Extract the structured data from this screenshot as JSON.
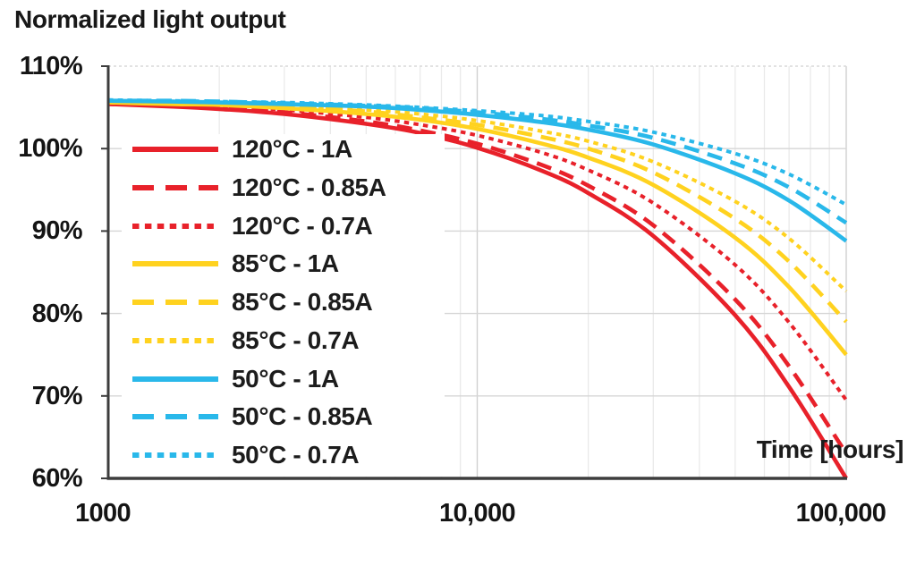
{
  "chart_data": {
    "type": "line",
    "title": "Normalized light output",
    "xlabel": "Time [hours]",
    "ylabel": "",
    "x_scale": "log",
    "xlim": [
      1000,
      100000
    ],
    "ylim": [
      60,
      110
    ],
    "grid": "on",
    "legend_position": "inside-upper-left",
    "x_ticks": [
      {
        "value": 1000,
        "label": "1000"
      },
      {
        "value": 10000,
        "label": "10,000"
      },
      {
        "value": 100000,
        "label": "100,000"
      }
    ],
    "y_ticks": [
      {
        "value": 110,
        "label": "110%"
      },
      {
        "value": 100,
        "label": "100%"
      },
      {
        "value": 90,
        "label": "90%"
      },
      {
        "value": 80,
        "label": "80%"
      },
      {
        "value": 70,
        "label": "70%"
      },
      {
        "value": 60,
        "label": "60%"
      }
    ],
    "x_minor_gridlines": [
      2000,
      3000,
      4000,
      5000,
      6000,
      7000,
      8000,
      9000,
      20000,
      30000,
      40000,
      50000,
      60000,
      70000,
      80000,
      90000
    ],
    "x_major_gridlines": [
      10000,
      100000
    ],
    "y_gridlines": [
      70,
      80,
      90,
      100
    ],
    "colors": {
      "line_120C": "#e8212a",
      "line_85C": "#ffd21f",
      "line_50C": "#29b8ea",
      "axis": "#3d3d3d",
      "grid": "#d6d6d6"
    },
    "x": [
      1000,
      1500,
      2000,
      3000,
      5000,
      7000,
      10000,
      15000,
      20000,
      30000,
      50000,
      70000,
      100000
    ],
    "series": [
      {
        "name": "120°C - 1A",
        "color": "#e8212a",
        "dash": "solid",
        "values": [
          105.4,
          105.1,
          104.8,
          104.2,
          103.0,
          101.9,
          100.1,
          97.3,
          94.6,
          89.4,
          79.8,
          71.1,
          60.0
        ]
      },
      {
        "name": "120°C - 0.85A",
        "color": "#e8212a",
        "dash": "dashed",
        "values": [
          105.5,
          105.2,
          104.9,
          104.4,
          103.3,
          102.2,
          100.6,
          98.0,
          95.5,
          90.7,
          81.7,
          73.6,
          63.0
        ]
      },
      {
        "name": "120°C - 0.7A",
        "color": "#e8212a",
        "dash": "dotted",
        "values": [
          105.6,
          105.3,
          105.1,
          104.7,
          103.8,
          102.9,
          101.6,
          99.5,
          97.4,
          93.4,
          85.9,
          78.9,
          69.5
        ]
      },
      {
        "name": "85°C - 1A",
        "color": "#ffd21f",
        "dash": "solid",
        "values": [
          105.6,
          105.4,
          105.3,
          104.9,
          104.2,
          103.5,
          102.4,
          100.6,
          98.9,
          95.6,
          89.2,
          83.2,
          75.0
        ]
      },
      {
        "name": "85°C - 0.85A",
        "color": "#ffd21f",
        "dash": "dashed",
        "values": [
          105.7,
          105.5,
          105.4,
          105.1,
          104.5,
          103.8,
          102.9,
          101.4,
          100.0,
          97.1,
          91.5,
          86.3,
          79.0
        ]
      },
      {
        "name": "85°C - 0.7A",
        "color": "#ffd21f",
        "dash": "dotted",
        "values": [
          105.7,
          105.6,
          105.5,
          105.2,
          104.7,
          104.2,
          103.4,
          102.1,
          100.9,
          98.4,
          93.6,
          89.1,
          82.7
        ]
      },
      {
        "name": "50°C - 1A",
        "color": "#29b8ea",
        "dash": "solid",
        "values": [
          105.8,
          105.7,
          105.6,
          105.4,
          105.1,
          104.7,
          104.1,
          103.2,
          102.3,
          100.5,
          97.0,
          93.7,
          88.8
        ]
      },
      {
        "name": "50°C - 0.85A",
        "color": "#29b8ea",
        "dash": "dashed",
        "values": [
          105.8,
          105.8,
          105.7,
          105.5,
          105.2,
          104.9,
          104.4,
          103.6,
          102.8,
          101.3,
          98.2,
          95.3,
          91.0
        ]
      },
      {
        "name": "50°C - 0.7A",
        "color": "#29b8ea",
        "dash": "dotted",
        "values": [
          105.9,
          105.8,
          105.7,
          105.6,
          105.3,
          105.0,
          104.6,
          104.0,
          103.3,
          102.0,
          99.4,
          96.9,
          93.2
        ]
      }
    ]
  }
}
